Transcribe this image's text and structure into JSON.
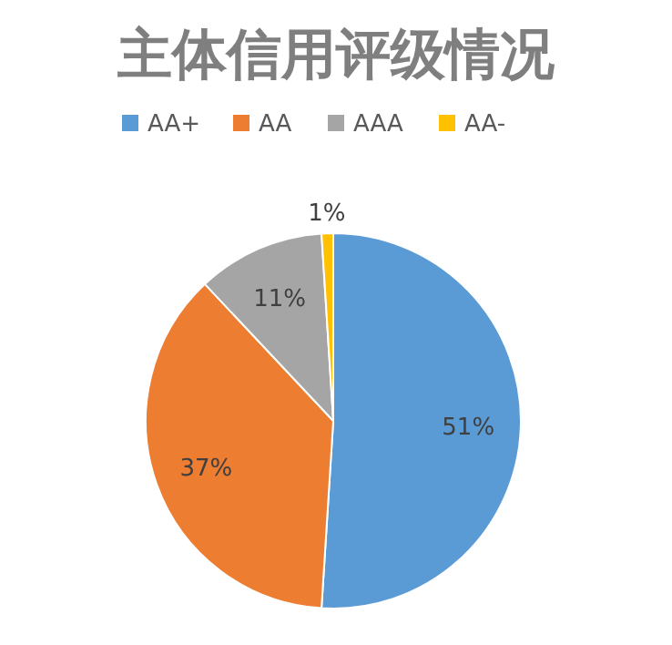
{
  "chart_data": {
    "type": "pie",
    "title": "主体信用评级情况",
    "categories": [
      "AA+",
      "AA",
      "AAA",
      "AA-"
    ],
    "values": [
      51,
      37,
      11,
      1
    ],
    "colors": [
      "#5b9bd5",
      "#ed7d31",
      "#a5a5a5",
      "#ffc000"
    ],
    "legend": "top",
    "value_labels": [
      "51%",
      "37%",
      "11%",
      "1%"
    ]
  }
}
